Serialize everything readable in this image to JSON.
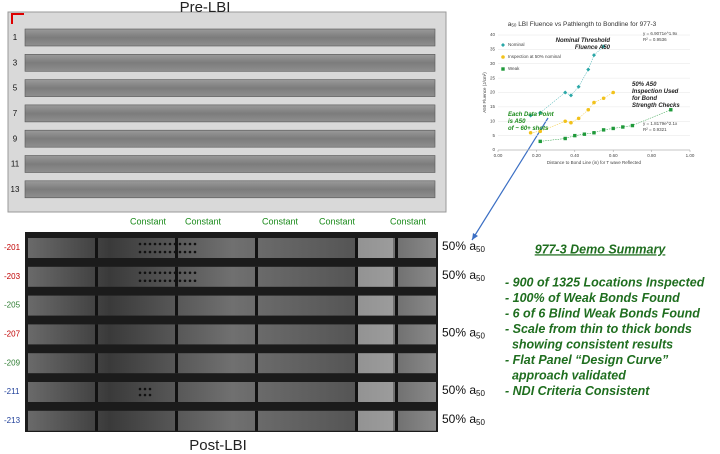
{
  "pre": {
    "title": "Pre-LBI",
    "strips": [
      "1",
      "3",
      "5",
      "7",
      "9",
      "11",
      "13"
    ]
  },
  "post": {
    "title": "Post-LBI",
    "columns": [
      "Constant",
      "Constant",
      "Constant",
      "Constant",
      "Constant"
    ],
    "rows": [
      {
        "id": "-201",
        "color": "#c00000",
        "note": {
          "text": "50% a",
          "sub": "50"
        }
      },
      {
        "id": "-203",
        "color": "#c00000",
        "note": {
          "text": "50% a",
          "sub": "50"
        }
      },
      {
        "id": "-205",
        "color": "#2e7d32"
      },
      {
        "id": "-207",
        "color": "#c00000",
        "note": {
          "text": "50% a",
          "sub": "50"
        }
      },
      {
        "id": "-209",
        "color": "#2e7d32"
      },
      {
        "id": "-211",
        "color": "#1f3f99",
        "note": {
          "text": "50% a",
          "sub": "50"
        }
      },
      {
        "id": "-213",
        "color": "#1f3f99",
        "note": {
          "text": "50% a",
          "sub": "50"
        }
      }
    ]
  },
  "chart_data": {
    "type": "scatter",
    "title_prefix": "a",
    "title_sub": "50",
    "title_rest": " LBI Fluence vs Pathlength to Bondline for 977-3",
    "x_label": "Distance to Bond Line (in) for T wave Reflected",
    "y_label": "A50 Fluence (J/cm²)",
    "xlim": [
      0,
      1
    ],
    "ylim": [
      0,
      40
    ],
    "xticks": [
      {
        "value": 0,
        "label": "0.00"
      },
      {
        "value": 0.2,
        "label": "0.20"
      },
      {
        "value": 0.4,
        "label": "0.40"
      },
      {
        "value": 0.6,
        "label": "0.60"
      },
      {
        "value": 0.8,
        "label": "0.80"
      },
      {
        "value": 1,
        "label": "1.00"
      }
    ],
    "yticks": [
      0,
      5,
      10,
      15,
      20,
      25,
      30,
      35,
      40
    ],
    "series": [
      {
        "name": "Nominal",
        "color": "#2aa7a7",
        "x": [
          0.17,
          0.22,
          0.35,
          0.38,
          0.42,
          0.47,
          0.5,
          0.55
        ],
        "values": [
          12,
          13,
          20,
          19,
          22,
          28,
          33,
          36
        ]
      },
      {
        "name": "Inspection at 50% nominal",
        "color": "#f2c21b",
        "x": [
          0.17,
          0.22,
          0.35,
          0.38,
          0.42,
          0.47,
          0.5,
          0.55,
          0.6
        ],
        "values": [
          6,
          6.5,
          10,
          9.5,
          11,
          14,
          16.5,
          18,
          20
        ]
      },
      {
        "name": "Weak",
        "color": "#1f9a3a",
        "x": [
          0.22,
          0.35,
          0.4,
          0.45,
          0.5,
          0.55,
          0.6,
          0.65,
          0.7,
          0.9
        ],
        "values": [
          3,
          4,
          5,
          5.5,
          6,
          7,
          7.5,
          8,
          8.5,
          14
        ]
      }
    ],
    "annotations": [
      "Nominal Threshold Fluence A50",
      "50% A50 Inspection Used for Bond Strength Checks",
      "Each Data Point is A50 of ~ 60+ shots"
    ],
    "equations": [
      "y = 6.9071e^1.9x",
      "R² = 0.9536",
      "y = 1.8179e^2.1x",
      "R² = 0.9321"
    ]
  },
  "summary": {
    "title": "977-3 Demo Summary",
    "lines": [
      "- 900 of 1325 Locations Inspected",
      "- 100% of Weak Bonds Found",
      "- 6 of 6 Blind Weak Bonds Found",
      "- Scale from thin to thick bonds",
      "  showing consistent results",
      "- Flat Panel “Design Curve”",
      "  approach validated",
      "- NDI Criteria Consistent"
    ]
  }
}
